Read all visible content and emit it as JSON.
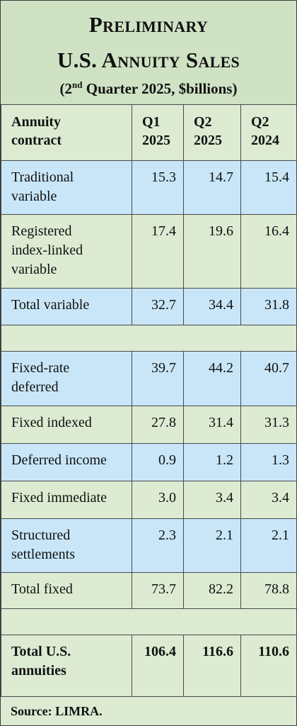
{
  "title": {
    "line1": "Preliminary",
    "line2": "U.S. Annuity Sales",
    "subtitle_prefix": "(2",
    "subtitle_sup": "nd",
    "subtitle_suffix": " Quarter 2025, $billions)"
  },
  "table": {
    "header": {
      "col0": [
        "Annuity",
        "contract"
      ],
      "col1": [
        "Q1",
        "2025"
      ],
      "col2": [
        "Q2",
        "2025"
      ],
      "col3": [
        "Q2",
        "2024"
      ]
    },
    "rows": [
      {
        "label": [
          "Traditional",
          "variable"
        ],
        "q1_2025": "15.3",
        "q2_2025": "14.7",
        "q2_2024": "15.4"
      },
      {
        "label": [
          "Registered",
          "index-linked",
          "variable"
        ],
        "q1_2025": "17.4",
        "q2_2025": "19.6",
        "q2_2024": "16.4"
      },
      {
        "label": [
          "Total variable"
        ],
        "q1_2025": "32.7",
        "q2_2025": "34.4",
        "q2_2024": "31.8"
      },
      {
        "label": [
          "Fixed-rate",
          "deferred"
        ],
        "q1_2025": "39.7",
        "q2_2025": "44.2",
        "q2_2024": "40.7"
      },
      {
        "label": [
          "Fixed indexed"
        ],
        "q1_2025": "27.8",
        "q2_2025": "31.4",
        "q2_2024": "31.3"
      },
      {
        "label": [
          "Deferred income"
        ],
        "q1_2025": "0.9",
        "q2_2025": "1.2",
        "q2_2024": "1.3"
      },
      {
        "label": [
          "Fixed immediate"
        ],
        "q1_2025": "3.0",
        "q2_2025": "3.4",
        "q2_2024": "3.4"
      },
      {
        "label": [
          "Structured",
          "settlements"
        ],
        "q1_2025": "2.3",
        "q2_2025": "2.1",
        "q2_2024": "2.1"
      },
      {
        "label": [
          "Total fixed"
        ],
        "q1_2025": "73.7",
        "q2_2025": "82.2",
        "q2_2024": "78.8"
      },
      {
        "label": [
          "Total U.S.",
          "annuities"
        ],
        "q1_2025": "106.4",
        "q2_2025": "116.6",
        "q2_2024": "110.6"
      }
    ]
  },
  "source": "Source: LIMRA.",
  "colors": {
    "title_bg": "#cfe3c4",
    "green_row": "#dcebd2",
    "blue_row": "#c8e6f7",
    "border": "#4a4a4a"
  }
}
